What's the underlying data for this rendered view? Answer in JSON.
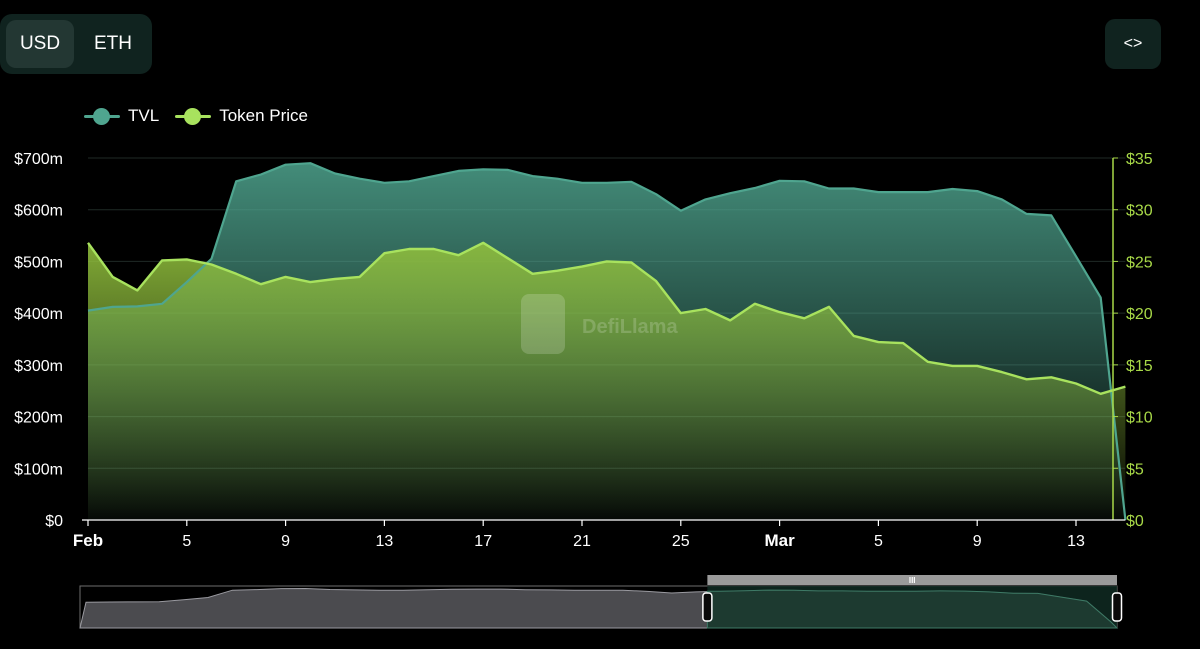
{
  "currency_toggle": {
    "options": [
      "USD",
      "ETH"
    ],
    "selected": "USD"
  },
  "embed_button": {
    "icon": "code-icon",
    "label": "<>"
  },
  "watermark": {
    "text": "DefiLlama"
  },
  "colors": {
    "tvl": "#4fa58f",
    "token_price": "#a8e25e",
    "right_axis": "#a8d948"
  },
  "chart_data": {
    "type": "area",
    "x": [
      "Feb 1",
      "Feb 2",
      "Feb 3",
      "Feb 4",
      "Feb 5",
      "Feb 6",
      "Feb 7",
      "Feb 8",
      "Feb 9",
      "Feb 10",
      "Feb 11",
      "Feb 12",
      "Feb 13",
      "Feb 14",
      "Feb 15",
      "Feb 16",
      "Feb 17",
      "Feb 18",
      "Feb 19",
      "Feb 20",
      "Feb 21",
      "Feb 22",
      "Feb 23",
      "Feb 24",
      "Feb 25",
      "Feb 26",
      "Feb 27",
      "Feb 28",
      "Mar 1",
      "Mar 2",
      "Mar 3",
      "Mar 4",
      "Mar 5",
      "Mar 6",
      "Mar 7",
      "Mar 8",
      "Mar 9",
      "Mar 10",
      "Mar 11",
      "Mar 12",
      "Mar 13",
      "Mar 14",
      "Mar 14.6"
    ],
    "x_tick_labels": [
      "Feb",
      "5",
      "9",
      "13",
      "17",
      "21",
      "25",
      "Mar",
      "5",
      "9",
      "13"
    ],
    "x_tick_index": [
      0,
      4,
      8,
      12,
      16,
      20,
      24,
      28,
      32,
      36,
      40
    ],
    "series": [
      {
        "name": "TVL",
        "axis": "left",
        "values": [
          405,
          412,
          413,
          418,
          460,
          505,
          655,
          668,
          687,
          690,
          670,
          660,
          652,
          655,
          665,
          675,
          678,
          677,
          665,
          660,
          652,
          652,
          654,
          630,
          598,
          620,
          632,
          642,
          656,
          655,
          641,
          641,
          634,
          634,
          634,
          640,
          636,
          620,
          592,
          589,
          510,
          430,
          0
        ]
      },
      {
        "name": "Token Price",
        "axis": "right",
        "values": [
          26.8,
          23.5,
          22.2,
          25.1,
          25.2,
          24.7,
          23.8,
          22.8,
          23.5,
          23.0,
          23.3,
          23.5,
          25.8,
          26.2,
          26.2,
          25.6,
          26.8,
          25.3,
          23.8,
          24.1,
          24.5,
          25.0,
          24.9,
          23.1,
          20.0,
          20.4,
          19.3,
          20.9,
          20.1,
          19.5,
          20.6,
          17.8,
          17.2,
          17.1,
          15.3,
          14.9,
          14.9,
          14.3,
          13.6,
          13.8,
          13.2,
          12.2,
          12.9
        ]
      }
    ],
    "y_left": {
      "ylim": [
        0,
        700
      ],
      "tick_labels": [
        "$0",
        "$100m",
        "$200m",
        "$300m",
        "$400m",
        "$500m",
        "$600m",
        "$700m"
      ]
    },
    "y_right": {
      "ylim": [
        0,
        35
      ],
      "tick_labels": [
        "$0",
        "$5",
        "$10",
        "$15",
        "$20",
        "$25",
        "$30",
        "$35"
      ]
    },
    "grid": true,
    "legend_position": "top-left",
    "range_selector": {
      "start": 0.605,
      "end": 1.0,
      "handle_label": "III"
    }
  }
}
